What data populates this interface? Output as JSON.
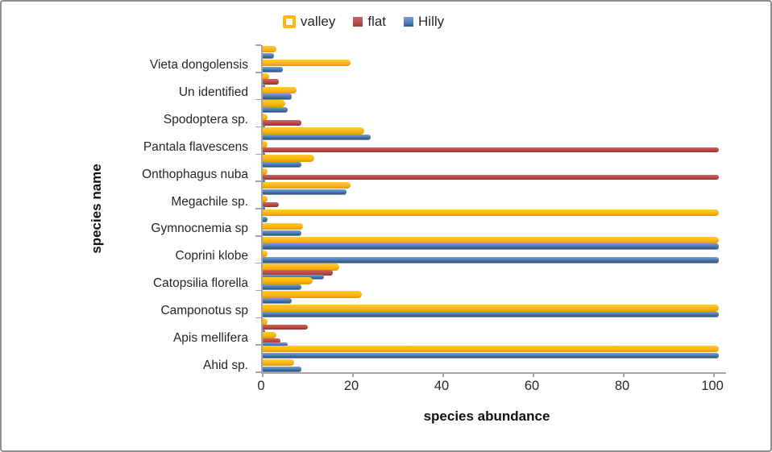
{
  "window": {
    "background": "#ffffff",
    "border_color": "#8f8f8f"
  },
  "chart_data": {
    "type": "bar",
    "orientation": "horizontal",
    "title": "",
    "xlabel": "species abundance",
    "ylabel": "species name",
    "legend_position": "top",
    "grid": "off",
    "x_ticks": [
      0,
      20,
      40,
      60,
      80,
      100
    ],
    "xlim": [
      0,
      102
    ],
    "label_interval": 2,
    "row_order": "top_to_bottom",
    "series": [
      {
        "name": "valley",
        "color": "#fdb813",
        "swatch": "outlined"
      },
      {
        "name": "flat",
        "color": "#be4b48",
        "swatch": "filled"
      },
      {
        "name": "Hilly",
        "color": "#4f81bd",
        "swatch": "filled"
      }
    ],
    "rows": [
      {
        "label": "",
        "valley": 3,
        "flat": 0,
        "hilly": 2.5
      },
      {
        "label": "Vieta dongolensis",
        "valley": 19.5,
        "flat": 0,
        "hilly": 4.5
      },
      {
        "label": "",
        "valley": 1.5,
        "flat": 3.5,
        "hilly": 0.5
      },
      {
        "label": "Un identified",
        "valley": 7.5,
        "flat": 0,
        "hilly": 6.5
      },
      {
        "label": "",
        "valley": 5,
        "flat": 0,
        "hilly": 5.5
      },
      {
        "label": "Spodoptera sp.",
        "valley": 1,
        "flat": 8.5,
        "hilly": 0.5
      },
      {
        "label": "",
        "valley": 22.5,
        "flat": 0,
        "hilly": 24
      },
      {
        "label": "Pantala flavescens",
        "valley": 1,
        "flat": 101,
        "hilly": 0.5
      },
      {
        "label": "",
        "valley": 11.5,
        "flat": 0,
        "hilly": 8.5
      },
      {
        "label": "Onthophagus nuba",
        "valley": 1,
        "flat": 101,
        "hilly": 0.5
      },
      {
        "label": "",
        "valley": 19.5,
        "flat": 0,
        "hilly": 18.5
      },
      {
        "label": "Megachile sp.",
        "valley": 1,
        "flat": 3.5,
        "hilly": 0.5
      },
      {
        "label": "",
        "valley": 101,
        "flat": 0,
        "hilly": 1
      },
      {
        "label": "Gymnocnemia sp",
        "valley": 9,
        "flat": 0,
        "hilly": 8.5
      },
      {
        "label": "",
        "valley": 101,
        "flat": 0,
        "hilly": 101
      },
      {
        "label": "Coprini klobe",
        "valley": 1,
        "flat": 0,
        "hilly": 101
      },
      {
        "label": "",
        "valley": 17,
        "flat": 15.5,
        "hilly": 13.5
      },
      {
        "label": "Catopsilia florella",
        "valley": 11,
        "flat": 0,
        "hilly": 8.5
      },
      {
        "label": "",
        "valley": 22,
        "flat": 0,
        "hilly": 6.5
      },
      {
        "label": "Camponotus sp",
        "valley": 101,
        "flat": 0,
        "hilly": 101
      },
      {
        "label": "",
        "valley": 1,
        "flat": 10,
        "hilly": 0.5
      },
      {
        "label": "Apis mellifera",
        "valley": 3,
        "flat": 4,
        "hilly": 5.5
      },
      {
        "label": "",
        "valley": 101,
        "flat": 0,
        "hilly": 101
      },
      {
        "label": "Ahid sp.",
        "valley": 7,
        "flat": 0,
        "hilly": 8.5
      }
    ]
  }
}
